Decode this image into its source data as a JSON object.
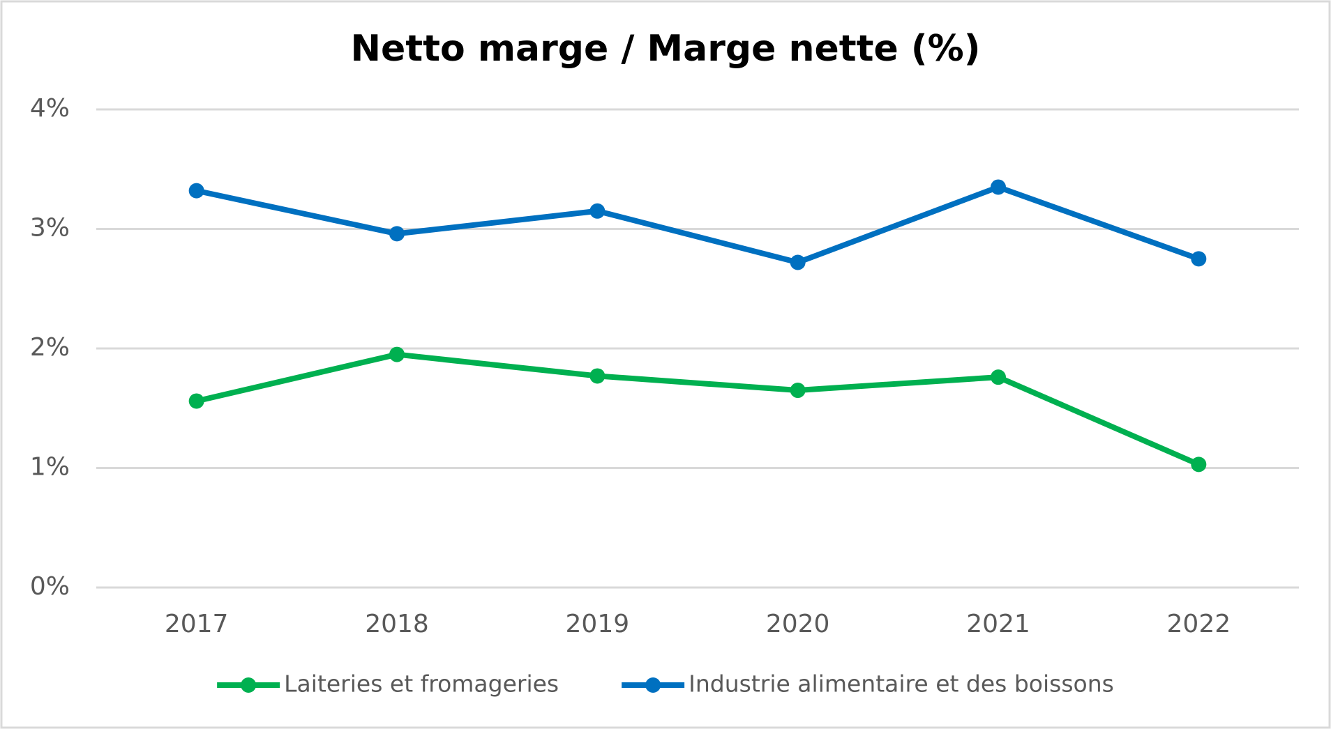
{
  "chart_data": {
    "type": "line",
    "title": "Netto marge / Marge nette (%)",
    "categories": [
      "2017",
      "2018",
      "2019",
      "2020",
      "2021",
      "2022"
    ],
    "series": [
      {
        "name": "Laiteries et fromageries",
        "color": "#00b050",
        "values": [
          1.56,
          1.95,
          1.77,
          1.65,
          1.76,
          1.03
        ]
      },
      {
        "name": "Industrie alimentaire et des boissons",
        "color": "#0070c0",
        "values": [
          3.32,
          2.96,
          3.15,
          2.72,
          3.35,
          2.75
        ]
      }
    ],
    "ylim": [
      0,
      4
    ],
    "yticks": [
      {
        "value": 0,
        "label": "0%"
      },
      {
        "value": 1,
        "label": "1%"
      },
      {
        "value": 2,
        "label": "2%"
      },
      {
        "value": 3,
        "label": "3%"
      },
      {
        "value": 4,
        "label": "4%"
      }
    ],
    "grid": true,
    "legend": "bottom"
  }
}
